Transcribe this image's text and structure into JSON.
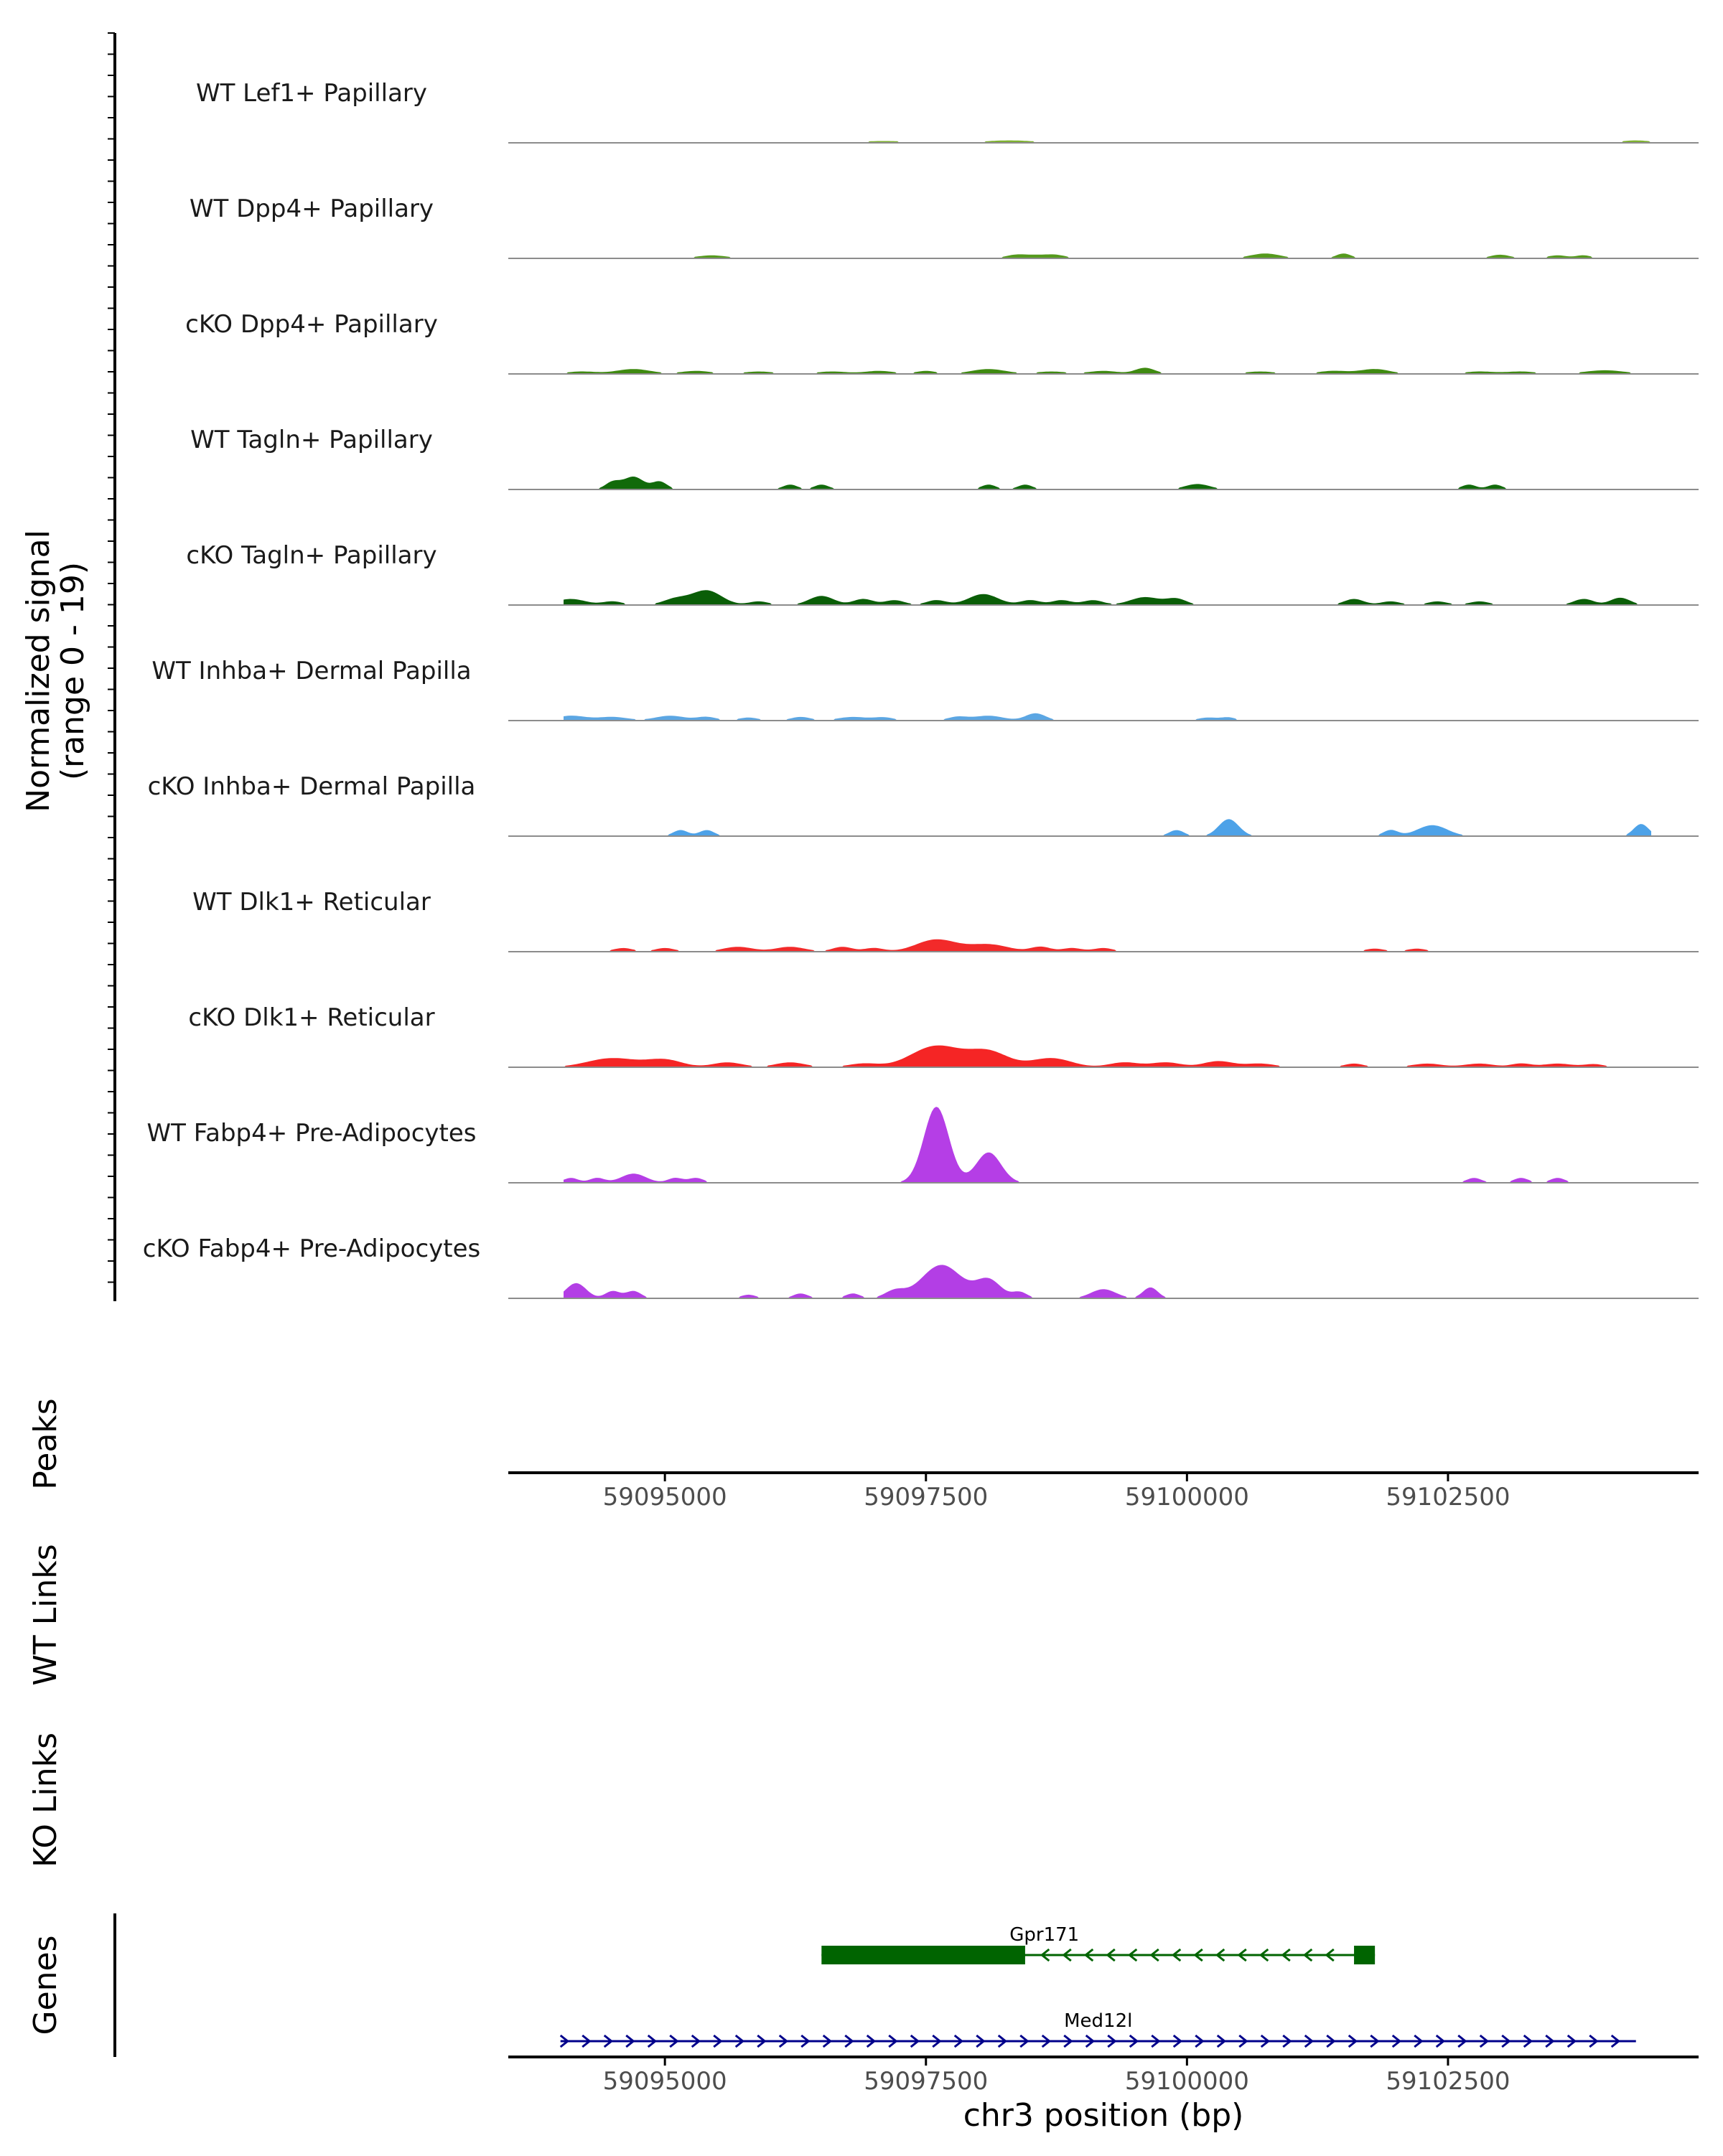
{
  "chart_data": {
    "type": "area",
    "title": "",
    "ylabel": "Normalized signal\n(range 0 - 19)",
    "xlabel": "chr3 position (bp)",
    "xlim": [
      59093500,
      59104900
    ],
    "ylim": [
      0,
      19
    ],
    "x_ticks": [
      "59095000",
      "59097500",
      "59100000",
      "59102500"
    ],
    "x_tick_values": [
      59095000,
      59097500,
      59100000,
      59102500
    ],
    "track_labels": {
      "peaks": "Peaks",
      "wt_links": "WT Links",
      "ko_links": "KO Links",
      "genes": "Genes"
    },
    "series": [
      {
        "name": "WT Lef1+ Papillary",
        "color": "#7fb230",
        "peaks": [
          [
            59094200,
            0.15,
            300
          ],
          [
            59094900,
            0.15,
            200
          ],
          [
            59097100,
            0.3,
            500
          ],
          [
            59098300,
            0.4,
            500
          ],
          [
            59099500,
            0.2,
            300
          ],
          [
            59100100,
            0.2,
            300
          ],
          [
            59101000,
            0.2,
            300
          ],
          [
            59101500,
            0.15,
            300
          ],
          [
            59102300,
            0.15,
            300
          ],
          [
            59102900,
            0.2,
            300
          ],
          [
            59104300,
            0.4,
            300
          ]
        ]
      },
      {
        "name": "WT Dpp4+ Papillary",
        "color": "#559a1d",
        "peaks": [
          [
            59095450,
            0.5,
            300
          ],
          [
            59098350,
            0.5,
            200
          ],
          [
            59098550,
            0.5,
            250
          ],
          [
            59098750,
            0.5,
            200
          ],
          [
            59100750,
            0.8,
            300
          ],
          [
            59101500,
            0.8,
            150
          ],
          [
            59103000,
            0.6,
            200
          ],
          [
            59103550,
            0.5,
            200
          ],
          [
            59103800,
            0.5,
            150
          ]
        ]
      },
      {
        "name": "cKO Dpp4+ Papillary",
        "color": "#3f8a10",
        "peaks": [
          [
            59094200,
            0.4,
            300
          ],
          [
            59094700,
            0.8,
            350
          ],
          [
            59095300,
            0.5,
            300
          ],
          [
            59095900,
            0.4,
            300
          ],
          [
            59096600,
            0.4,
            300
          ],
          [
            59097050,
            0.5,
            300
          ],
          [
            59097500,
            0.5,
            200
          ],
          [
            59098100,
            0.8,
            350
          ],
          [
            59098700,
            0.4,
            300
          ],
          [
            59099200,
            0.5,
            300
          ],
          [
            59099600,
            1.0,
            200
          ],
          [
            59100700,
            0.4,
            300
          ],
          [
            59101400,
            0.5,
            300
          ],
          [
            59101800,
            0.8,
            300
          ],
          [
            59102800,
            0.4,
            300
          ],
          [
            59103200,
            0.4,
            300
          ],
          [
            59104000,
            0.6,
            400
          ]
        ]
      },
      {
        "name": "WT Tagln+ Papillary",
        "color": "#116a0a",
        "peaks": [
          [
            59094500,
            1.2,
            150
          ],
          [
            59094700,
            2.1,
            200
          ],
          [
            59094950,
            1.3,
            150
          ],
          [
            59096200,
            0.8,
            150
          ],
          [
            59096500,
            0.8,
            150
          ],
          [
            59098100,
            0.8,
            150
          ],
          [
            59098450,
            0.8,
            150
          ],
          [
            59100100,
            0.9,
            250
          ],
          [
            59102700,
            0.8,
            150
          ],
          [
            59102950,
            0.8,
            150
          ]
        ]
      },
      {
        "name": "cKO Tagln+ Papillary",
        "color": "#0a5e07",
        "peaks": [
          [
            59094100,
            1.0,
            300
          ],
          [
            59094500,
            0.6,
            200
          ],
          [
            59095100,
            1.0,
            250
          ],
          [
            59095400,
            2.4,
            300
          ],
          [
            59095900,
            0.6,
            200
          ],
          [
            59096500,
            1.5,
            250
          ],
          [
            59096900,
            1.0,
            200
          ],
          [
            59097200,
            0.8,
            200
          ],
          [
            59097600,
            0.8,
            200
          ],
          [
            59098050,
            1.8,
            300
          ],
          [
            59098500,
            0.8,
            200
          ],
          [
            59098800,
            0.8,
            200
          ],
          [
            59099100,
            0.8,
            200
          ],
          [
            59099600,
            1.3,
            300
          ],
          [
            59099900,
            1.0,
            200
          ],
          [
            59101600,
            1.0,
            200
          ],
          [
            59101950,
            0.6,
            200
          ],
          [
            59102400,
            0.6,
            200
          ],
          [
            59102800,
            0.6,
            200
          ],
          [
            59103800,
            1.0,
            200
          ],
          [
            59104150,
            1.2,
            200
          ]
        ]
      },
      {
        "name": "WT Inhba+ Dermal Papilla",
        "color": "#5ba6e3",
        "peaks": [
          [
            59094100,
            0.8,
            300
          ],
          [
            59094500,
            0.6,
            300
          ],
          [
            59095050,
            0.8,
            300
          ],
          [
            59095400,
            0.6,
            200
          ],
          [
            59095800,
            0.5,
            200
          ],
          [
            59096300,
            0.6,
            200
          ],
          [
            59096800,
            0.6,
            300
          ],
          [
            59097100,
            0.5,
            200
          ],
          [
            59097800,
            0.6,
            200
          ],
          [
            59098100,
            0.8,
            300
          ],
          [
            59098550,
            1.2,
            200
          ],
          [
            59100200,
            0.5,
            200
          ],
          [
            59100400,
            0.5,
            150
          ]
        ]
      },
      {
        "name": "cKO Inhba+ Dermal Papilla",
        "color": "#4da2e8",
        "peaks": [
          [
            59095150,
            1.0,
            150
          ],
          [
            59095400,
            1.0,
            150
          ],
          [
            59099900,
            1.0,
            150
          ],
          [
            59100400,
            2.8,
            200
          ],
          [
            59101950,
            1.0,
            150
          ],
          [
            59102350,
            1.8,
            300
          ],
          [
            59104350,
            2.0,
            150
          ]
        ]
      },
      {
        "name": "WT Dlk1+ Reticular",
        "color": "#f22a2a",
        "peaks": [
          [
            59094600,
            0.6,
            200
          ],
          [
            59095000,
            0.6,
            200
          ],
          [
            59095700,
            0.8,
            300
          ],
          [
            59096200,
            0.8,
            300
          ],
          [
            59096700,
            0.8,
            200
          ],
          [
            59097000,
            0.6,
            200
          ],
          [
            59097600,
            2.0,
            400
          ],
          [
            59098100,
            1.2,
            400
          ],
          [
            59098600,
            0.8,
            200
          ],
          [
            59098900,
            0.6,
            200
          ],
          [
            59099200,
            0.6,
            200
          ],
          [
            59101800,
            0.5,
            200
          ],
          [
            59102200,
            0.5,
            200
          ]
        ]
      },
      {
        "name": "cKO Dlk1+ Reticular",
        "color": "#f52525",
        "peaks": [
          [
            59094500,
            1.5,
            500
          ],
          [
            59095000,
            1.2,
            350
          ],
          [
            59095600,
            0.8,
            300
          ],
          [
            59096200,
            0.8,
            300
          ],
          [
            59096900,
            0.6,
            300
          ],
          [
            59097600,
            3.5,
            500
          ],
          [
            59098100,
            2.5,
            400
          ],
          [
            59098700,
            1.5,
            400
          ],
          [
            59099400,
            0.8,
            300
          ],
          [
            59099800,
            0.8,
            300
          ],
          [
            59100300,
            1.0,
            300
          ],
          [
            59100700,
            0.6,
            300
          ],
          [
            59101600,
            0.6,
            200
          ],
          [
            59102300,
            0.6,
            300
          ],
          [
            59102800,
            0.6,
            300
          ],
          [
            59103200,
            0.6,
            200
          ],
          [
            59103550,
            0.6,
            300
          ],
          [
            59103900,
            0.5,
            200
          ]
        ]
      },
      {
        "name": "WT Fabp4+ Pre-Adipocytes",
        "color": "#b53ee6",
        "peaks": [
          [
            59094100,
            0.8,
            150
          ],
          [
            59094350,
            0.8,
            150
          ],
          [
            59094700,
            1.5,
            250
          ],
          [
            59095100,
            0.8,
            150
          ],
          [
            59095300,
            0.8,
            150
          ],
          [
            59097600,
            12.5,
            250
          ],
          [
            59098100,
            5.0,
            250
          ],
          [
            59102750,
            0.8,
            150
          ],
          [
            59103200,
            0.8,
            150
          ],
          [
            59103550,
            0.8,
            150
          ]
        ]
      },
      {
        "name": "cKO Fabp4+ Pre-Adipocytes",
        "color": "#b33ee5",
        "peaks": [
          [
            59094150,
            2.5,
            200
          ],
          [
            59094500,
            1.2,
            150
          ],
          [
            59094700,
            1.2,
            150
          ],
          [
            59095800,
            0.6,
            150
          ],
          [
            59096300,
            0.8,
            150
          ],
          [
            59096800,
            0.8,
            150
          ],
          [
            59097200,
            1.2,
            200
          ],
          [
            59097650,
            5.5,
            400
          ],
          [
            59098100,
            3.0,
            250
          ],
          [
            59098400,
            1.0,
            150
          ],
          [
            59099200,
            1.5,
            250
          ],
          [
            59099650,
            1.8,
            150
          ]
        ]
      }
    ],
    "genes": [
      {
        "name": "Gpr171",
        "color": "#006400",
        "start": 59096500,
        "end": 59101800,
        "strand": "-",
        "exons": [
          [
            59096500,
            59098450
          ],
          [
            59101600,
            59101800
          ]
        ]
      },
      {
        "name": "Med12l",
        "color": "#00008b",
        "start": 59094000,
        "end": 59104300,
        "strand": "+",
        "exons": []
      }
    ]
  }
}
